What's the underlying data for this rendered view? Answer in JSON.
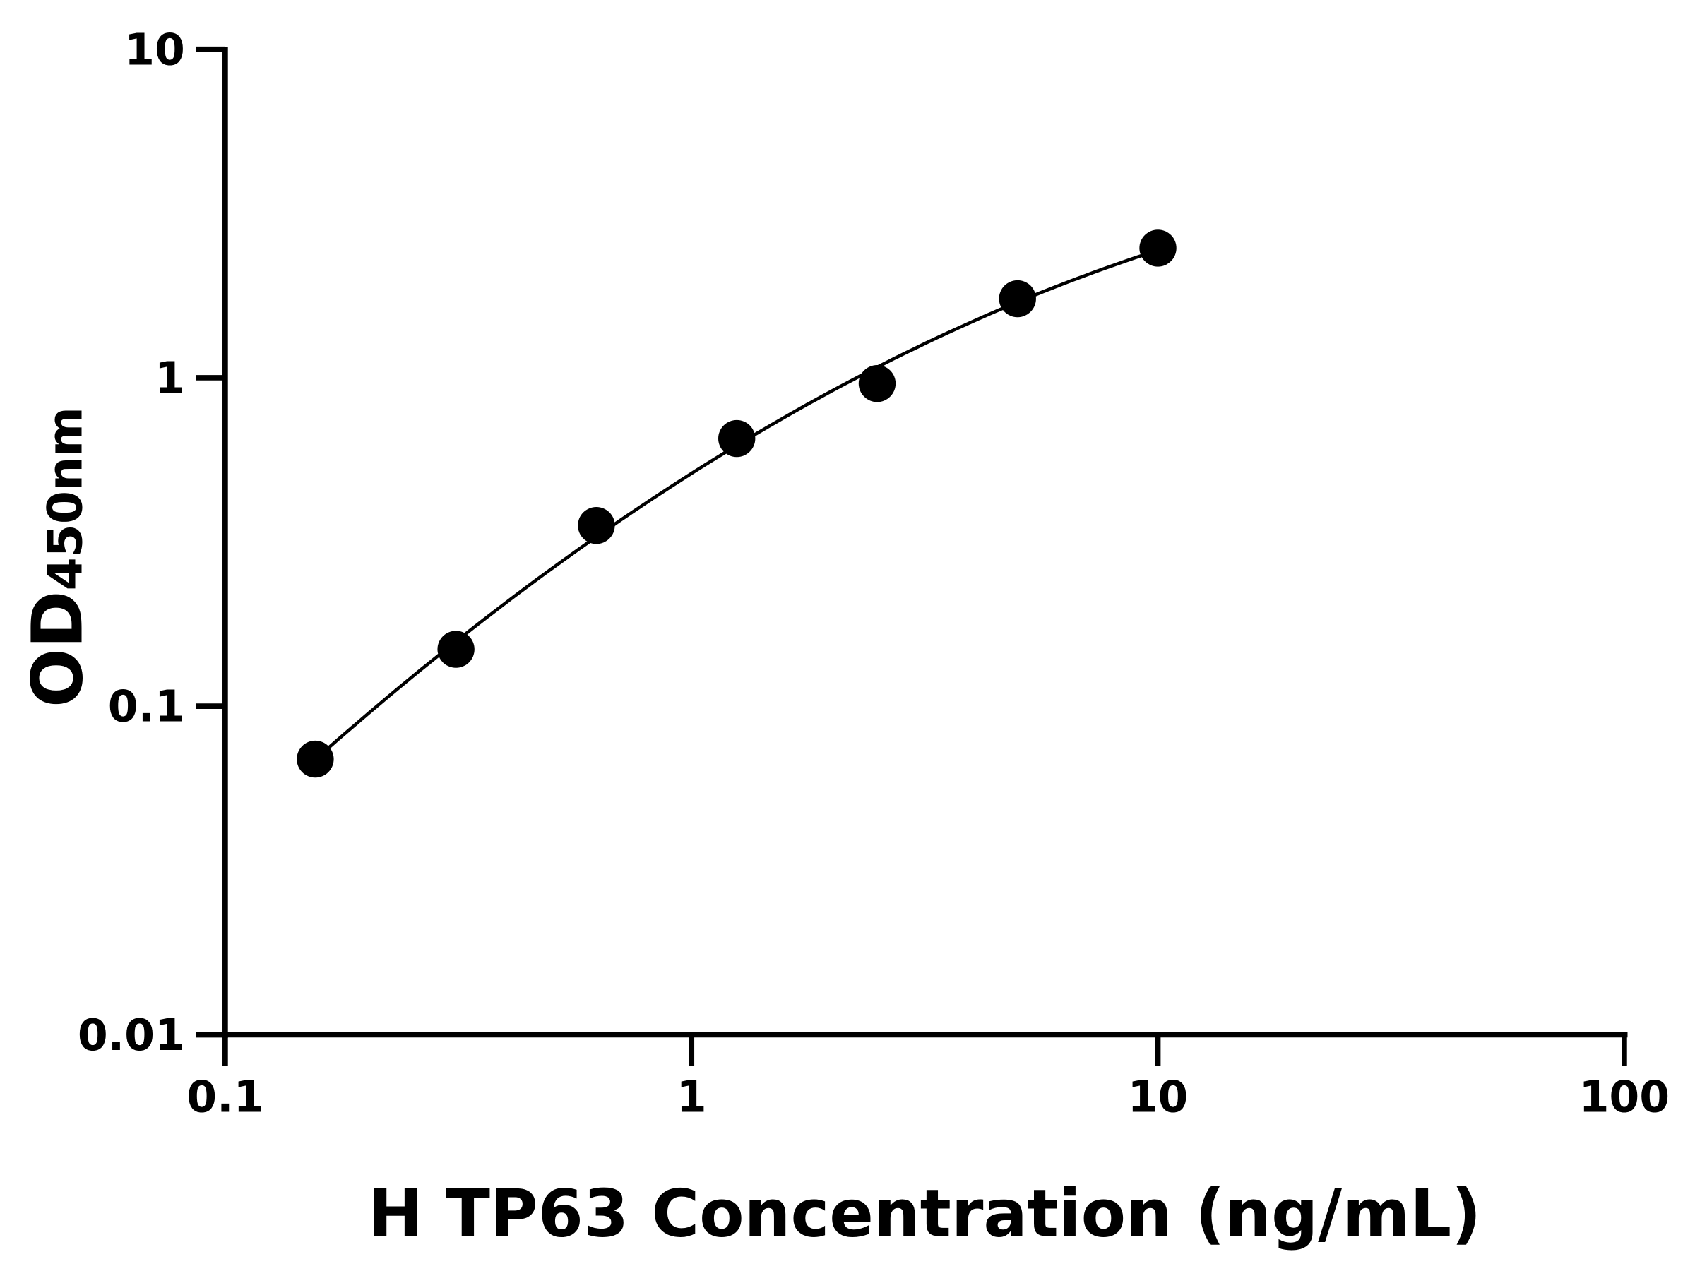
{
  "chart_data": {
    "type": "scatter",
    "title": "",
    "xlabel": "H TP63 Concentration (ng/mL)",
    "ylabel": {
      "main": "OD",
      "subscript": "450nm"
    },
    "xscale": "log",
    "yscale": "log",
    "xlim": [
      0.1,
      100
    ],
    "ylim": [
      0.01,
      10
    ],
    "xticks": [
      "0.1",
      "1",
      "10",
      "100"
    ],
    "yticks": [
      "0.01",
      "0.1",
      "1",
      "10"
    ],
    "grid": false,
    "fit_curve": true,
    "color": "#000000",
    "series": [
      {
        "x": [
          0.156,
          0.3125,
          0.625,
          1.25,
          2.5,
          5,
          10
        ],
        "y": [
          0.069,
          0.149,
          0.355,
          0.653,
          0.96,
          1.74,
          2.48
        ]
      }
    ]
  }
}
